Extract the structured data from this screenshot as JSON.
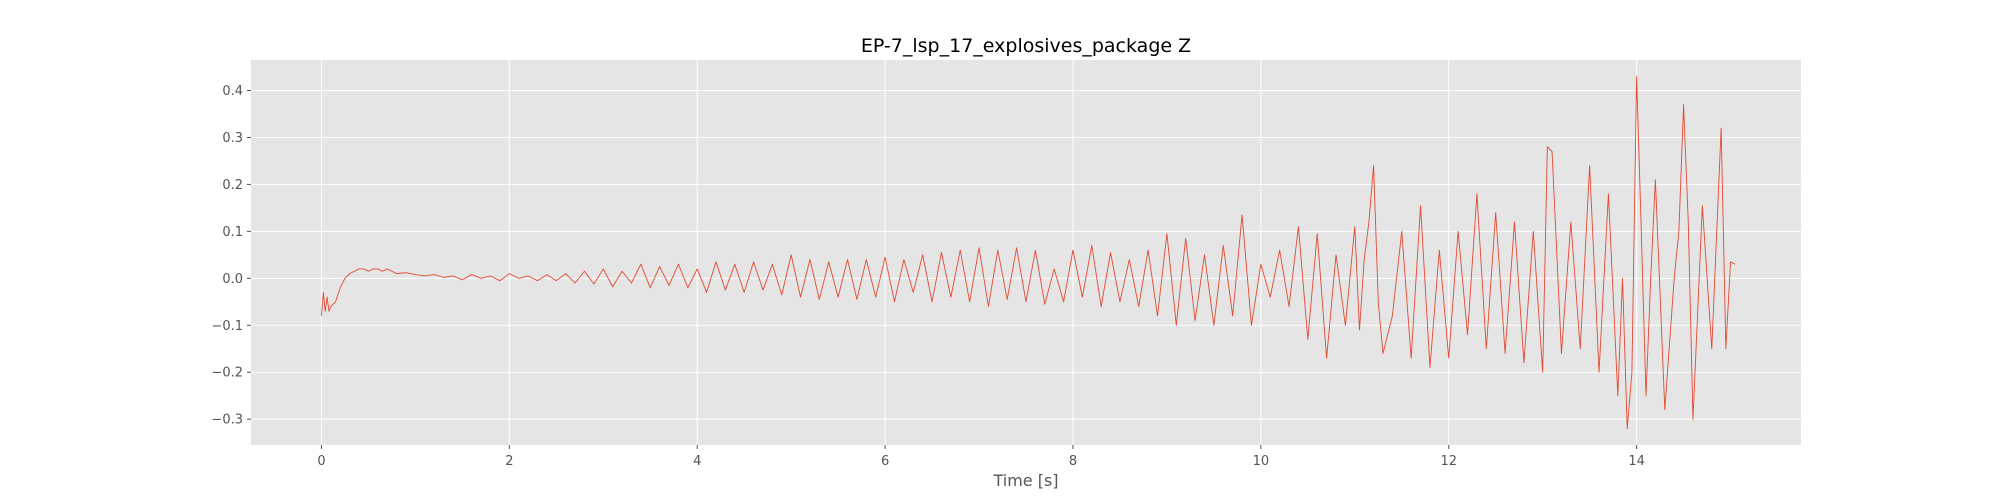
{
  "chart_data": {
    "type": "line",
    "title": "EP-7_lsp_17_explosives_package Z",
    "xlabel": "Time [s]",
    "ylabel": "",
    "xlim": [
      -0.75,
      15.75
    ],
    "ylim": [
      -0.355,
      0.465
    ],
    "xticks": [
      0,
      2,
      4,
      6,
      8,
      10,
      12,
      14
    ],
    "xtick_labels": [
      "0",
      "2",
      "4",
      "6",
      "8",
      "10",
      "12",
      "14"
    ],
    "yticks": [
      -0.3,
      -0.2,
      -0.1,
      0.0,
      0.1,
      0.2,
      0.3,
      0.4
    ],
    "ytick_labels": [
      "−0.3",
      "−0.2",
      "−0.1",
      "0.0",
      "0.1",
      "0.2",
      "0.3",
      "0.4"
    ],
    "grid": true,
    "line_color": "#E24A33",
    "background_color": "#E5E5E5",
    "grid_color": "#FFFFFF",
    "series": [
      {
        "x": [
          0.0,
          0.02,
          0.04,
          0.06,
          0.08,
          0.1,
          0.15,
          0.2,
          0.25,
          0.3,
          0.35,
          0.4,
          0.45,
          0.5,
          0.55,
          0.6,
          0.65,
          0.7,
          0.75,
          0.8,
          0.9,
          1.0,
          1.1,
          1.2,
          1.3,
          1.4,
          1.5,
          1.6,
          1.7,
          1.8,
          1.9,
          2.0,
          2.1,
          2.2,
          2.3,
          2.4,
          2.5,
          2.6,
          2.7,
          2.8,
          2.9,
          3.0,
          3.1,
          3.2,
          3.3,
          3.4,
          3.5,
          3.6,
          3.7,
          3.8,
          3.9,
          4.0,
          4.1,
          4.2,
          4.3,
          4.4,
          4.5,
          4.6,
          4.7,
          4.8,
          4.9,
          5.0,
          5.1,
          5.2,
          5.3,
          5.4,
          5.5,
          5.6,
          5.7,
          5.8,
          5.9,
          6.0,
          6.1,
          6.2,
          6.3,
          6.4,
          6.5,
          6.6,
          6.7,
          6.8,
          6.9,
          7.0,
          7.1,
          7.2,
          7.3,
          7.4,
          7.5,
          7.6,
          7.7,
          7.8,
          7.9,
          8.0,
          8.1,
          8.2,
          8.3,
          8.4,
          8.5,
          8.6,
          8.7,
          8.8,
          8.9,
          9.0,
          9.1,
          9.2,
          9.3,
          9.4,
          9.5,
          9.6,
          9.7,
          9.8,
          9.9,
          10.0,
          10.1,
          10.2,
          10.3,
          10.4,
          10.5,
          10.6,
          10.7,
          10.8,
          10.9,
          11.0,
          11.05,
          11.1,
          11.15,
          11.2,
          11.25,
          11.3,
          11.4,
          11.5,
          11.6,
          11.7,
          11.8,
          11.9,
          12.0,
          12.1,
          12.2,
          12.3,
          12.4,
          12.5,
          12.6,
          12.7,
          12.8,
          12.9,
          13.0,
          13.05,
          13.1,
          13.2,
          13.3,
          13.4,
          13.5,
          13.6,
          13.7,
          13.8,
          13.85,
          13.9,
          13.95,
          14.0,
          14.05,
          14.1,
          14.15,
          14.2,
          14.3,
          14.4,
          14.45,
          14.5,
          14.55,
          14.6,
          14.7,
          14.8,
          14.9,
          14.95,
          15.0,
          15.05
        ],
        "y": [
          -0.08,
          -0.03,
          -0.07,
          -0.04,
          -0.07,
          -0.06,
          -0.05,
          -0.02,
          0.0,
          0.01,
          0.015,
          0.02,
          0.02,
          0.015,
          0.02,
          0.02,
          0.015,
          0.02,
          0.015,
          0.01,
          0.012,
          0.008,
          0.005,
          0.008,
          0.002,
          0.005,
          -0.003,
          0.008,
          0.0,
          0.005,
          -0.005,
          0.01,
          0.0,
          0.005,
          -0.005,
          0.008,
          -0.005,
          0.01,
          -0.01,
          0.015,
          -0.012,
          0.02,
          -0.018,
          0.015,
          -0.01,
          0.03,
          -0.02,
          0.025,
          -0.015,
          0.03,
          -0.02,
          0.02,
          -0.03,
          0.035,
          -0.025,
          0.03,
          -0.03,
          0.035,
          -0.025,
          0.03,
          -0.035,
          0.05,
          -0.04,
          0.04,
          -0.045,
          0.035,
          -0.04,
          0.04,
          -0.045,
          0.04,
          -0.04,
          0.045,
          -0.05,
          0.04,
          -0.03,
          0.05,
          -0.05,
          0.055,
          -0.04,
          0.06,
          -0.05,
          0.065,
          -0.06,
          0.06,
          -0.045,
          0.065,
          -0.05,
          0.06,
          -0.055,
          0.02,
          -0.05,
          0.06,
          -0.04,
          0.07,
          -0.06,
          0.055,
          -0.05,
          0.04,
          -0.06,
          0.06,
          -0.08,
          0.095,
          -0.1,
          0.085,
          -0.09,
          0.05,
          -0.1,
          0.07,
          -0.08,
          0.135,
          -0.1,
          0.03,
          -0.04,
          0.06,
          -0.06,
          0.11,
          -0.13,
          0.095,
          -0.17,
          0.05,
          -0.1,
          0.11,
          -0.11,
          0.04,
          0.12,
          0.24,
          -0.05,
          -0.16,
          -0.08,
          0.1,
          -0.17,
          0.155,
          -0.19,
          0.06,
          -0.17,
          0.1,
          -0.12,
          0.18,
          -0.15,
          0.14,
          -0.16,
          0.12,
          -0.18,
          0.1,
          -0.2,
          0.28,
          0.27,
          -0.16,
          0.12,
          -0.15,
          0.24,
          -0.2,
          0.18,
          -0.25,
          0.0,
          -0.32,
          -0.2,
          0.43,
          0.1,
          -0.25,
          0.0,
          0.21,
          -0.28,
          0.0,
          0.1,
          0.37,
          0.12,
          -0.3,
          0.155,
          -0.15,
          0.32,
          -0.15,
          0.035,
          0.03
        ]
      }
    ]
  }
}
